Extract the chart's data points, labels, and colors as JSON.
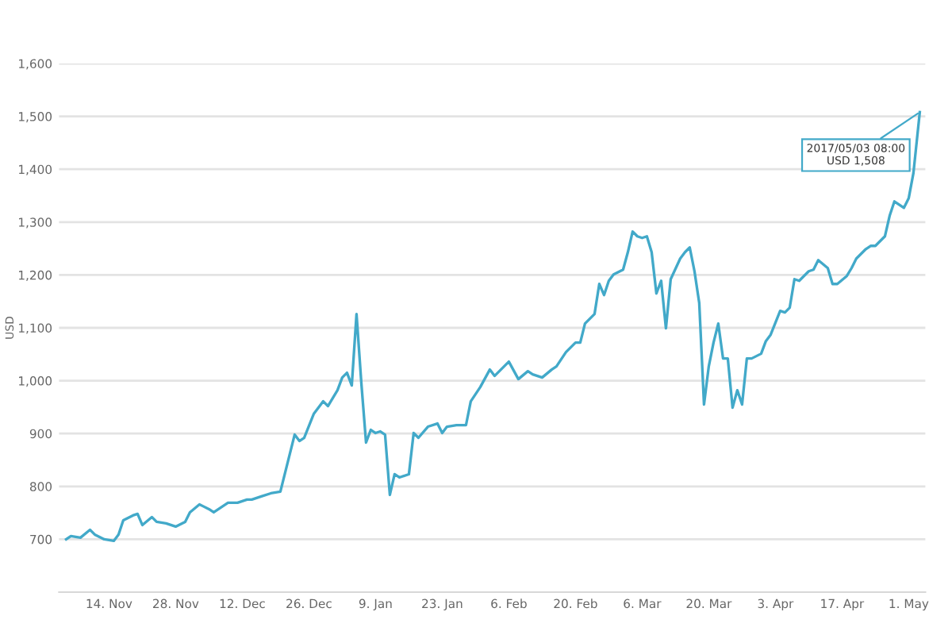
{
  "chart_data": {
    "type": "line",
    "ylabel": "USD",
    "x": [
      "2016-11-05",
      "2016-11-06",
      "2016-11-08",
      "2016-11-10",
      "2016-11-11",
      "2016-11-13",
      "2016-11-15",
      "2016-11-16",
      "2016-11-17",
      "2016-11-19",
      "2016-11-20",
      "2016-11-21",
      "2016-11-23",
      "2016-11-24",
      "2016-11-26",
      "2016-11-28",
      "2016-11-30",
      "2016-12-01",
      "2016-12-03",
      "2016-12-05",
      "2016-12-06",
      "2016-12-08",
      "2016-12-09",
      "2016-12-11",
      "2016-12-13",
      "2016-12-14",
      "2016-12-16",
      "2016-12-18",
      "2016-12-20",
      "2016-12-23",
      "2016-12-24",
      "2016-12-25",
      "2016-12-27",
      "2016-12-29",
      "2016-12-30",
      "2017-01-01",
      "2017-01-02",
      "2017-01-03",
      "2017-01-04",
      "2017-01-05",
      "2017-01-06",
      "2017-01-07",
      "2017-01-08",
      "2017-01-09",
      "2017-01-10",
      "2017-01-11",
      "2017-01-12",
      "2017-01-13",
      "2017-01-14",
      "2017-01-16",
      "2017-01-17",
      "2017-01-18",
      "2017-01-20",
      "2017-01-22",
      "2017-01-23",
      "2017-01-24",
      "2017-01-26",
      "2017-01-28",
      "2017-01-29",
      "2017-01-31",
      "2017-02-02",
      "2017-02-03",
      "2017-02-05",
      "2017-02-06",
      "2017-02-08",
      "2017-02-10",
      "2017-02-11",
      "2017-02-13",
      "2017-02-15",
      "2017-02-16",
      "2017-02-18",
      "2017-02-20",
      "2017-02-21",
      "2017-02-22",
      "2017-02-24",
      "2017-02-25",
      "2017-02-26",
      "2017-02-27",
      "2017-02-28",
      "2017-03-02",
      "2017-03-03",
      "2017-03-04",
      "2017-03-05",
      "2017-03-06",
      "2017-03-07",
      "2017-03-08",
      "2017-03-09",
      "2017-03-10",
      "2017-03-11",
      "2017-03-12",
      "2017-03-14",
      "2017-03-15",
      "2017-03-16",
      "2017-03-17",
      "2017-03-18",
      "2017-03-19",
      "2017-03-20",
      "2017-03-21",
      "2017-03-22",
      "2017-03-23",
      "2017-03-24",
      "2017-03-25",
      "2017-03-26",
      "2017-03-27",
      "2017-03-28",
      "2017-03-29",
      "2017-03-31",
      "2017-04-01",
      "2017-04-02",
      "2017-04-04",
      "2017-04-05",
      "2017-04-06",
      "2017-04-07",
      "2017-04-08",
      "2017-04-10",
      "2017-04-11",
      "2017-04-12",
      "2017-04-14",
      "2017-04-15",
      "2017-04-16",
      "2017-04-18",
      "2017-04-19",
      "2017-04-20",
      "2017-04-22",
      "2017-04-23",
      "2017-04-24",
      "2017-04-26",
      "2017-04-27",
      "2017-04-28",
      "2017-04-30",
      "2017-05-01",
      "2017-05-02",
      "2017-05-03T08:00"
    ],
    "series": [
      {
        "color": "#42a9c9",
        "values": [
          700,
          706,
          703,
          718,
          709,
          700,
          697,
          709,
          736,
          745,
          748,
          727,
          742,
          733,
          730,
          724,
          733,
          751,
          766,
          757,
          751,
          763,
          769,
          769,
          775,
          775,
          781,
          787,
          790,
          898,
          886,
          892,
          937,
          961,
          952,
          982,
          1006,
          1015,
          991,
          1126,
          997,
          883,
          907,
          901,
          904,
          898,
          784,
          823,
          817,
          823,
          901,
          892,
          913,
          919,
          901,
          913,
          916,
          916,
          961,
          988,
          1021,
          1009,
          1027,
          1036,
          1003,
          1018,
          1012,
          1006,
          1021,
          1027,
          1054,
          1072,
          1072,
          1108,
          1126,
          1183,
          1162,
          1189,
          1201,
          1210,
          1243,
          1282,
          1273,
          1270,
          1273,
          1243,
          1165,
          1189,
          1099,
          1192,
          1231,
          1243,
          1252,
          1207,
          1147,
          955,
          1027,
          1072,
          1108,
          1042,
          1042,
          949,
          982,
          955,
          1042,
          1042,
          1051,
          1075,
          1087,
          1132,
          1129,
          1138,
          1192,
          1189,
          1207,
          1210,
          1228,
          1213,
          1183,
          1183,
          1198,
          1213,
          1231,
          1249,
          1255,
          1255,
          1273,
          1312,
          1339,
          1327,
          1345,
          1393,
          1508
        ]
      }
    ],
    "xlim": [
      "2016-11-03T12:00",
      "2017-05-04T12:00"
    ],
    "xticks": [
      {
        "value": "2016-11-14",
        "label": "14. Nov"
      },
      {
        "value": "2016-11-28",
        "label": "28. Nov"
      },
      {
        "value": "2016-12-12",
        "label": "12. Dec"
      },
      {
        "value": "2016-12-26",
        "label": "26. Dec"
      },
      {
        "value": "2017-01-09",
        "label": "9. Jan"
      },
      {
        "value": "2017-01-23",
        "label": "23. Jan"
      },
      {
        "value": "2017-02-06",
        "label": "6. Feb"
      },
      {
        "value": "2017-02-20",
        "label": "20. Feb"
      },
      {
        "value": "2017-03-06",
        "label": "6. Mar"
      },
      {
        "value": "2017-03-20",
        "label": "20. Mar"
      },
      {
        "value": "2017-04-03",
        "label": "3. Apr"
      },
      {
        "value": "2017-04-17",
        "label": "17. Apr"
      },
      {
        "value": "2017-05-01",
        "label": "1. May"
      }
    ],
    "ylim": [
      600,
      1600
    ],
    "yticks": [
      700,
      800,
      900,
      {
        "value": 1000,
        "label": "1,000"
      },
      {
        "value": 1100,
        "label": "1,100"
      },
      {
        "value": 1200,
        "label": "1,200"
      },
      {
        "value": 1300,
        "label": "1,300"
      },
      {
        "value": 1400,
        "label": "1,400"
      },
      {
        "value": 1500,
        "label": "1,500"
      },
      {
        "value": 1600,
        "label": "1,600"
      }
    ],
    "grid": "y",
    "annotations": [
      {
        "text": "2017/05/03 08:00\nUSD 1,508",
        "x": "2017-05-03T08:00",
        "y": 1508
      }
    ]
  }
}
